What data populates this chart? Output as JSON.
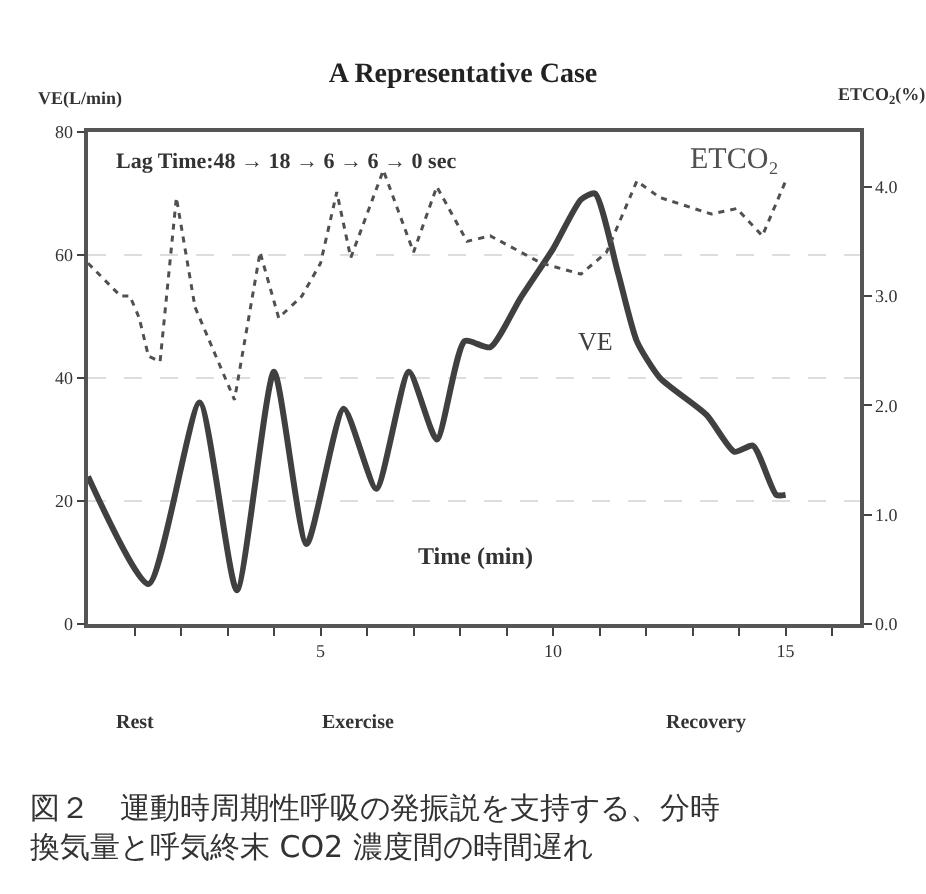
{
  "chart_data": {
    "type": "line",
    "title": "A Representative Case",
    "xlabel": "Time (min)",
    "ylabel": "VE(L/min)",
    "y2label": "ETCO$_{2}$(%)",
    "series": [
      {
        "name": "VE",
        "color": "#404040",
        "line_style": "solid",
        "x": [
          0,
          1.3,
          2.4,
          3.2,
          4.0,
          4.7,
          5.5,
          6.2,
          6.9,
          7.5,
          8.1,
          8.65,
          9.3,
          10.0,
          10.6,
          10.9,
          11.4,
          11.8,
          12.3,
          13.3,
          13.9,
          14.3,
          14.8,
          15.0
        ],
        "values": [
          24,
          6.5,
          36,
          5.5,
          41,
          13,
          35,
          22,
          41,
          30,
          46,
          45,
          53,
          61,
          69,
          70,
          57,
          46,
          40,
          34,
          28,
          29,
          21,
          21
        ]
      },
      {
        "name": "ETCO₂",
        "color": "#505050",
        "line_style": "dotted",
        "axis": "y2",
        "x": [
          0,
          0.7,
          0.9,
          1.1,
          1.3,
          1.55,
          1.9,
          2.3,
          2.6,
          3.15,
          3.7,
          4.1,
          4.6,
          5.0,
          5.35,
          5.65,
          6.35,
          7.0,
          7.5,
          8.15,
          8.65,
          9.75,
          10.6,
          11.15,
          11.8,
          12.3,
          13.4,
          13.95,
          14.5,
          15.0
        ],
        "values": [
          3.3,
          3.0,
          3.0,
          2.8,
          2.45,
          2.4,
          3.9,
          2.9,
          2.6,
          2.05,
          3.4,
          2.8,
          3.0,
          3.3,
          3.95,
          3.35,
          4.15,
          3.4,
          4.0,
          3.5,
          3.55,
          3.3,
          3.2,
          3.4,
          4.05,
          3.9,
          3.75,
          3.8,
          3.55,
          4.05
        ]
      }
    ],
    "xlim": [
      0,
      16.6
    ],
    "xticks": [
      {
        "value": 1,
        "label": null
      },
      {
        "value": 2,
        "label": null
      },
      {
        "value": 3,
        "label": null
      },
      {
        "value": 4,
        "label": null
      },
      5,
      {
        "value": 6,
        "label": null
      },
      {
        "value": 7,
        "label": null
      },
      {
        "value": 8,
        "label": null
      },
      {
        "value": 9,
        "label": null
      },
      10,
      {
        "value": 11,
        "label": null
      },
      {
        "value": 12,
        "label": null
      },
      {
        "value": 13,
        "label": null
      },
      {
        "value": 14,
        "label": null
      },
      15,
      {
        "value": 16,
        "label": null
      }
    ],
    "ylim": [
      0,
      80
    ],
    "yticks": [
      0,
      20,
      40,
      60,
      80
    ],
    "y2lim": [
      0,
      4.5
    ],
    "y2ticks": [
      {
        "value": 0,
        "label": "0.0"
      },
      {
        "value": 1,
        "label": "1.0"
      },
      {
        "value": 2,
        "label": "2.0"
      },
      {
        "value": 3,
        "label": "3.0"
      },
      {
        "value": 4,
        "label": "4.0"
      }
    ],
    "grid": "y",
    "legend": false,
    "annotations": [
      "Lag Time:48 → 18 → 6 → 6 → 0 sec",
      "Rest",
      "Exercise",
      "Recovery",
      "図２　運動時周期性呼吸の発振説を支持する、分時換気量と呼気終末 CO2 濃度間の時間遅れ"
    ]
  }
}
